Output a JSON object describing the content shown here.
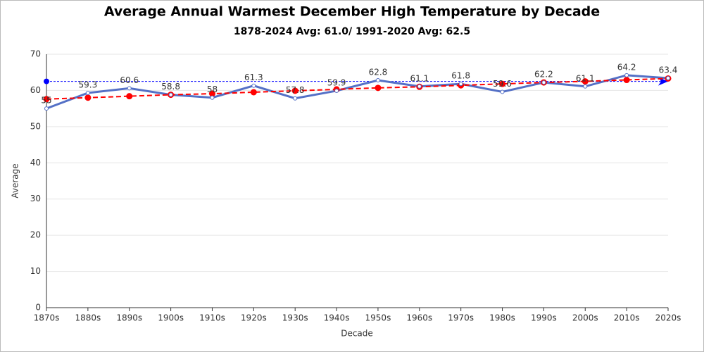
{
  "chart_data": {
    "type": "line",
    "title": "Average Annual Warmest December High Temperature by Decade",
    "subtitle": "1878-2024 Avg: 61.0/ 1991-2020 Avg: 62.5",
    "x_label": "Decade",
    "y_label": "Average",
    "categories": [
      "1870s",
      "1880s",
      "1890s",
      "1900s",
      "1910s",
      "1920s",
      "1930s",
      "1940s",
      "1950s",
      "1960s",
      "1970s",
      "1980s",
      "1990s",
      "2000s",
      "2010s",
      "2020s"
    ],
    "values": [
      55,
      59.3,
      60.6,
      58.8,
      58,
      61.3,
      57.8,
      59.9,
      62.8,
      61.1,
      61.8,
      59.6,
      62.2,
      61.1,
      64.2,
      63.4
    ],
    "color": "#5470c6",
    "trend": {
      "values": [
        57.6,
        58.0,
        58.4,
        58.8,
        59.1,
        59.5,
        59.9,
        60.3,
        60.7,
        61.0,
        61.4,
        61.8,
        62.2,
        62.5,
        62.9,
        63.3
      ],
      "color": "#ff0000"
    },
    "reference_line": {
      "value": 62.5,
      "color": "#0000ff"
    },
    "ylim": [
      0,
      70
    ],
    "yticks": [
      0,
      10,
      20,
      30,
      40,
      50,
      60,
      70
    ],
    "grid": true
  }
}
